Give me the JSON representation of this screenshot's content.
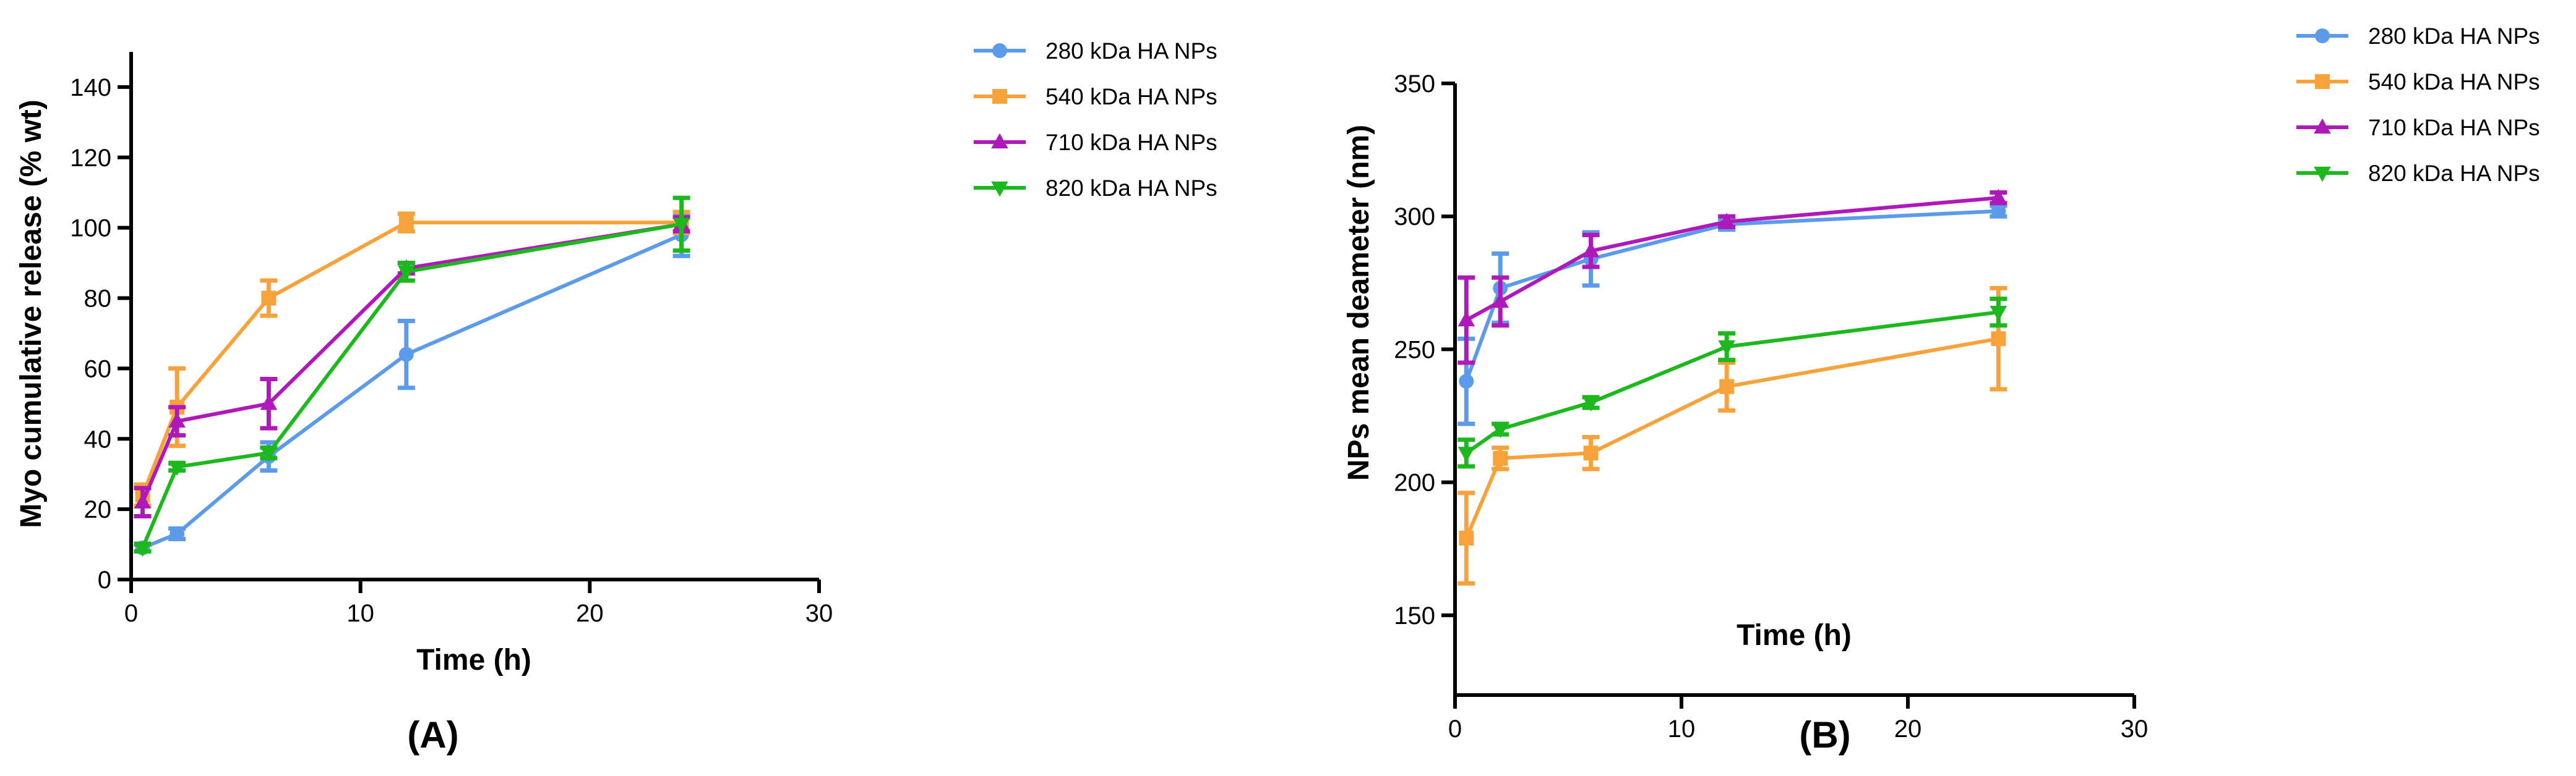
{
  "chart_data": [
    {
      "type": "line",
      "panel_label": "(A)",
      "xlabel": "Time (h)",
      "ylabel": "Myo cumulative release (% wt)",
      "xlim": [
        0,
        30
      ],
      "ylim": [
        0,
        150
      ],
      "xticks": [
        0,
        10,
        20,
        30
      ],
      "yticks": [
        0,
        20,
        40,
        60,
        80,
        100,
        120,
        140
      ],
      "grid": false,
      "legend": "top-right",
      "x": [
        0.5,
        2,
        6,
        12,
        24
      ],
      "series": [
        {
          "name": "280 kDa HA NPs",
          "color": "#5b9bea",
          "marker": "circle",
          "values": [
            9,
            13,
            35,
            64,
            98
          ],
          "errors": [
            1,
            1.5,
            4,
            9.5,
            6
          ]
        },
        {
          "name": "540 kDa HA NPs",
          "color": "#f8a23c",
          "marker": "square",
          "values": [
            24,
            49,
            80,
            101.5,
            101.5
          ],
          "errors": [
            3,
            11,
            5,
            2.5,
            3
          ]
        },
        {
          "name": "710 kDa HA NPs",
          "color": "#b019b9",
          "marker": "triangle-up",
          "values": [
            22,
            45,
            50,
            88.5,
            101
          ],
          "errors": [
            4,
            4,
            7,
            1.5,
            2
          ]
        },
        {
          "name": "820 kDa HA NPs",
          "color": "#1db81d",
          "marker": "triangle-down",
          "values": [
            9,
            32,
            36,
            87.5,
            101
          ],
          "errors": [
            1,
            1,
            1.5,
            2.5,
            7.5
          ]
        }
      ]
    },
    {
      "type": "line",
      "panel_label": "(B)",
      "xlabel": "Time (h)",
      "ylabel": "NPs mean deameter (nm)",
      "xlim": [
        0,
        30
      ],
      "ylim": [
        120,
        350
      ],
      "xticks": [
        0,
        10,
        20,
        30
      ],
      "yticks": [
        150,
        200,
        250,
        300,
        350
      ],
      "grid": false,
      "legend": "top-right",
      "x": [
        0.5,
        2,
        6,
        12,
        24
      ],
      "series": [
        {
          "name": "280 kDa HA NPs",
          "color": "#5b9bea",
          "marker": "circle",
          "values": [
            238,
            273,
            284,
            297,
            302
          ],
          "errors": [
            16,
            13,
            10,
            2,
            2
          ]
        },
        {
          "name": "540 kDa HA NPs",
          "color": "#f8a23c",
          "marker": "square",
          "values": [
            179,
            209,
            211,
            236,
            254
          ],
          "errors": [
            17,
            4,
            6,
            9,
            19
          ]
        },
        {
          "name": "710 kDa HA NPs",
          "color": "#b019b9",
          "marker": "triangle-up",
          "values": [
            261,
            268,
            287,
            298,
            307
          ],
          "errors": [
            16,
            9,
            6,
            2,
            2
          ]
        },
        {
          "name": "820 kDa HA NPs",
          "color": "#1db81d",
          "marker": "triangle-down",
          "values": [
            211,
            220,
            230,
            251,
            264
          ],
          "errors": [
            5,
            2,
            2,
            5,
            5
          ]
        }
      ]
    }
  ]
}
